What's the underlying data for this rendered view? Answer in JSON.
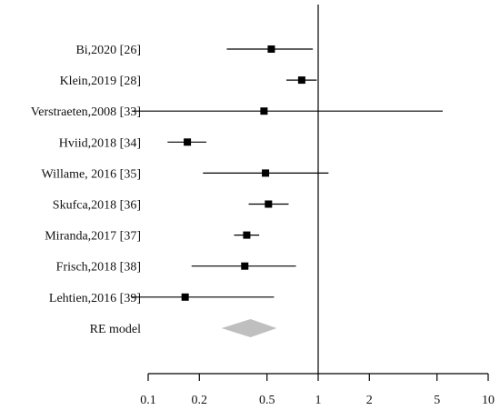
{
  "chart_data": {
    "type": "forest",
    "x_scale": "log",
    "xlim": [
      0.1,
      10
    ],
    "x_ticks": [
      {
        "value": 0.1,
        "label": "0.1"
      },
      {
        "value": 0.2,
        "label": "0.2"
      },
      {
        "value": 0.5,
        "label": "0.5"
      },
      {
        "value": 1,
        "label": "1"
      },
      {
        "value": 2,
        "label": "2"
      },
      {
        "value": 5,
        "label": "5"
      },
      {
        "value": 10,
        "label": "10"
      }
    ],
    "reference_line": 1,
    "studies": [
      {
        "label": "Bi,2020 [26]",
        "estimate": 0.53,
        "lower": 0.29,
        "upper": 0.93
      },
      {
        "label": "Klein,2019 [28]",
        "estimate": 0.8,
        "lower": 0.65,
        "upper": 0.98
      },
      {
        "label": "Verstraeten,2008 [33]",
        "estimate": 0.48,
        "lower": 0.08,
        "upper": 5.4
      },
      {
        "label": "Hviid,2018 [34]",
        "estimate": 0.17,
        "lower": 0.13,
        "upper": 0.22
      },
      {
        "label": "Willame, 2016 [35]",
        "estimate": 0.49,
        "lower": 0.21,
        "upper": 1.15
      },
      {
        "label": "Skufca,2018 [36]",
        "estimate": 0.51,
        "lower": 0.39,
        "upper": 0.67
      },
      {
        "label": "Miranda,2017 [37]",
        "estimate": 0.38,
        "lower": 0.32,
        "upper": 0.45
      },
      {
        "label": "Frisch,2018 [38]",
        "estimate": 0.37,
        "lower": 0.18,
        "upper": 0.74
      },
      {
        "label": "Lehtien,2016 [39]",
        "estimate": 0.165,
        "lower": 0.08,
        "upper": 0.55
      }
    ],
    "summary": {
      "label": "RE model",
      "estimate": 0.4,
      "lower": 0.27,
      "upper": 0.57
    },
    "colors": {
      "marker": "#000000",
      "summary": "#bfbfbf",
      "line": "#000000"
    }
  }
}
